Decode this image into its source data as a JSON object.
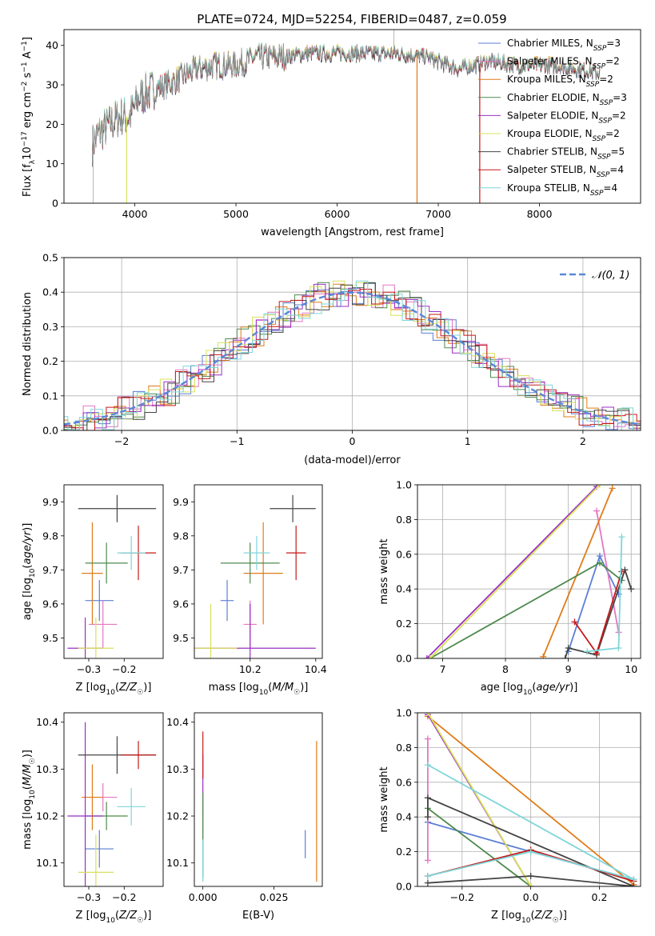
{
  "figure": {
    "title": "PLATE=0724, MJD=52254, FIBERID=0487, z=0.059"
  },
  "chart_data": [
    {
      "id": "spectrum",
      "type": "line",
      "title": "PLATE=0724, MJD=52254, FIBERID=0487, z=0.059",
      "xlabel": "wavelength [Angstrom, rest frame]",
      "ylabel": "Flux [f_λ 10^-17 erg cm^-2 s^-1 A^-1]",
      "xlim": [
        3300,
        9000
      ],
      "ylim": [
        0,
        44
      ],
      "xticks": [
        4000,
        5000,
        6000,
        7000,
        8000
      ],
      "yticks": [
        0,
        10,
        20,
        30,
        40
      ],
      "grid": false,
      "legend_position": "top-right",
      "continuum": {
        "x": [
          3580,
          3650,
          3750,
          3850,
          3950,
          4050,
          4200,
          4400,
          4600,
          4800,
          5000,
          5200,
          5400,
          5700,
          6000,
          6300,
          6600,
          6900,
          7200,
          7500,
          7800,
          8100,
          8400,
          8600
        ],
        "y": [
          15,
          18,
          20,
          22,
          22,
          27,
          29,
          31,
          34,
          35,
          35,
          37,
          37,
          38,
          38,
          38,
          38,
          37,
          34,
          36,
          35,
          35,
          34,
          33
        ]
      },
      "series": [
        {
          "name": "Chabrier MILES, N_SSP=3",
          "color": "#5b7fd6"
        },
        {
          "name": "Salpeter MILES, N_SSP=2",
          "color": "#e377c2"
        },
        {
          "name": "Kroupa MILES, N_SSP=2",
          "color": "#e07b18"
        },
        {
          "name": "Chabrier ELODIE, N_SSP=3",
          "color": "#4e8a4e"
        },
        {
          "name": "Salpeter ELODIE, N_SSP=2",
          "color": "#9b2fc2"
        },
        {
          "name": "Kroupa ELODIE, N_SSP=2",
          "color": "#d8e05a"
        },
        {
          "name": "Chabrier STELIB, N_SSP=5",
          "color": "#444444"
        },
        {
          "name": "Salpeter STELIB, N_SSP=4",
          "color": "#c41a1a"
        },
        {
          "name": "Kroupa STELIB, N_SSP=4",
          "color": "#7fd6d8"
        }
      ]
    },
    {
      "id": "residuals",
      "type": "histogram",
      "xlabel": "(data-model)/error",
      "ylabel": "Normed distribution",
      "xlim": [
        -2.5,
        2.5
      ],
      "ylim": [
        0,
        0.5
      ],
      "xticks": [
        -2,
        -1,
        0,
        1,
        2
      ],
      "yticks": [
        0.0,
        0.1,
        0.2,
        0.3,
        0.4,
        0.5
      ],
      "grid": true,
      "legend_position": "top-right",
      "reference_curve": {
        "name": "𝒩(0, 1)",
        "color": "#5b88d6"
      }
    },
    {
      "id": "Z-age",
      "type": "errorbar",
      "xlabel": "Z [log10(Z/Z☉)]",
      "ylabel": "age  [log10(age/yr)]",
      "xlim": [
        -0.37,
        -0.09
      ],
      "ylim": [
        9.44,
        9.95
      ],
      "xticks": [
        -0.3,
        -0.2
      ],
      "yticks": [
        9.5,
        9.6,
        9.7,
        9.8,
        9.9
      ],
      "points": [
        {
          "x": -0.27,
          "xerr": 0.04,
          "y": 9.61,
          "yerr": 0.06,
          "color": "#5b7fd6"
        },
        {
          "x": -0.26,
          "xerr": 0.04,
          "y": 9.54,
          "yerr": 0.07,
          "color": "#e377c2"
        },
        {
          "x": -0.29,
          "xerr": 0.03,
          "y": 9.69,
          "yerr": 0.15,
          "color": "#e07b18"
        },
        {
          "x": -0.25,
          "xerr": 0.06,
          "y": 9.72,
          "yerr": 0.06,
          "color": "#4e8a4e"
        },
        {
          "x": -0.31,
          "xerr": 0.05,
          "y": 9.47,
          "yerr": 0.09,
          "color": "#9b2fc2"
        },
        {
          "x": -0.28,
          "xerr": 0.05,
          "y": 9.47,
          "yerr": 0.09,
          "color": "#d8e05a"
        },
        {
          "x": -0.22,
          "xerr": 0.11,
          "y": 9.88,
          "yerr": 0.04,
          "color": "#444444"
        },
        {
          "x": -0.16,
          "xerr": 0.05,
          "y": 9.75,
          "yerr": 0.08,
          "color": "#c41a1a"
        },
        {
          "x": -0.18,
          "xerr": 0.04,
          "y": 9.75,
          "yerr": 0.05,
          "color": "#7fd6d8"
        }
      ]
    },
    {
      "id": "mass-age",
      "type": "errorbar",
      "xlabel": "mass [log10(M/M☉)]",
      "ylabel": "",
      "xlim": [
        10.03,
        10.42
      ],
      "ylim": [
        9.44,
        9.95
      ],
      "xticks": [
        10.2,
        10.4
      ],
      "yticks": [
        9.5,
        9.6,
        9.7,
        9.8,
        9.9
      ],
      "points": [
        {
          "x": 10.13,
          "xerr": 0.02,
          "y": 9.61,
          "yerr": 0.06,
          "color": "#5b7fd6"
        },
        {
          "x": 10.2,
          "xerr": 0.02,
          "y": 9.54,
          "yerr": 0.07,
          "color": "#e377c2"
        },
        {
          "x": 10.24,
          "xerr": 0.06,
          "y": 9.69,
          "yerr": 0.15,
          "color": "#e07b18"
        },
        {
          "x": 10.2,
          "xerr": 0.09,
          "y": 9.72,
          "yerr": 0.06,
          "color": "#4e8a4e"
        },
        {
          "x": 10.2,
          "xerr": 0.2,
          "y": 9.47,
          "yerr": 0.13,
          "color": "#9b2fc2"
        },
        {
          "x": 10.08,
          "xerr": 0.08,
          "y": 9.47,
          "yerr": 0.13,
          "color": "#d8e05a"
        },
        {
          "x": 10.33,
          "xerr": 0.07,
          "y": 9.88,
          "yerr": 0.04,
          "color": "#444444"
        },
        {
          "x": 10.34,
          "xerr": 0.03,
          "y": 9.75,
          "yerr": 0.08,
          "color": "#c41a1a"
        },
        {
          "x": 10.22,
          "xerr": 0.04,
          "y": 9.75,
          "yerr": 0.05,
          "color": "#7fd6d8"
        }
      ]
    },
    {
      "id": "age-weight",
      "type": "line",
      "xlabel": "age  [log10(age/yr)]",
      "ylabel": "mass weight",
      "xlim": [
        6.6,
        10.15
      ],
      "ylim": [
        0,
        1
      ],
      "xticks": [
        7,
        8,
        9,
        10
      ],
      "yticks": [
        0.0,
        0.2,
        0.4,
        0.6,
        0.8,
        1.0
      ],
      "grid": true,
      "series": [
        {
          "color": "#5b7fd6",
          "x": [
            9.0,
            9.5,
            9.8
          ],
          "y": [
            0.04,
            0.59,
            0.37
          ]
        },
        {
          "color": "#e377c2",
          "x": [
            9.45,
            9.8
          ],
          "y": [
            0.85,
            0.15
          ]
        },
        {
          "color": "#e07b18",
          "x": [
            8.6,
            9.7
          ],
          "y": [
            0.01,
            0.98
          ]
        },
        {
          "color": "#4e8a4e",
          "x": [
            6.8,
            9.5,
            9.85
          ],
          "y": [
            0.0,
            0.55,
            0.45
          ]
        },
        {
          "color": "#9b2fc2",
          "x": [
            6.75,
            9.45
          ],
          "y": [
            0.0,
            0.99
          ]
        },
        {
          "color": "#d8e05a",
          "x": [
            6.8,
            9.5
          ],
          "y": [
            0.0,
            1.0
          ]
        },
        {
          "color": "#444444",
          "x": [
            8.95,
            9.0,
            9.45,
            9.9,
            10.0
          ],
          "y": [
            0.0,
            0.06,
            0.02,
            0.51,
            0.4
          ]
        },
        {
          "color": "#c41a1a",
          "x": [
            9.1,
            9.45,
            9.85
          ],
          "y": [
            0.21,
            0.03,
            0.5
          ]
        },
        {
          "color": "#7fd6d8",
          "x": [
            9.3,
            9.8,
            9.85
          ],
          "y": [
            0.04,
            0.06,
            0.7
          ]
        }
      ]
    },
    {
      "id": "Z-mass",
      "type": "errorbar",
      "xlabel": "Z [log10(Z/Z☉)]",
      "ylabel": "mass [log10(M/M☉)]",
      "xlim": [
        -0.37,
        -0.09
      ],
      "ylim": [
        10.05,
        10.42
      ],
      "xticks": [
        -0.3,
        -0.2
      ],
      "yticks": [
        10.1,
        10.2,
        10.3,
        10.4
      ],
      "points": [
        {
          "x": -0.27,
          "xerr": 0.04,
          "y": 10.13,
          "yerr": 0.04,
          "color": "#5b7fd6"
        },
        {
          "x": -0.26,
          "xerr": 0.04,
          "y": 10.24,
          "yerr": 0.03,
          "color": "#e377c2"
        },
        {
          "x": -0.29,
          "xerr": 0.03,
          "y": 10.24,
          "yerr": 0.07,
          "color": "#e07b18"
        },
        {
          "x": -0.25,
          "xerr": 0.06,
          "y": 10.2,
          "yerr": 0.03,
          "color": "#4e8a4e"
        },
        {
          "x": -0.31,
          "xerr": 0.05,
          "y": 10.2,
          "yerr": 0.2,
          "color": "#9b2fc2"
        },
        {
          "x": -0.28,
          "xerr": 0.05,
          "y": 10.08,
          "yerr": 0.08,
          "color": "#d8e05a"
        },
        {
          "x": -0.22,
          "xerr": 0.11,
          "y": 10.33,
          "yerr": 0.04,
          "color": "#444444"
        },
        {
          "x": -0.16,
          "xerr": 0.05,
          "y": 10.33,
          "yerr": 0.03,
          "color": "#c41a1a"
        },
        {
          "x": -0.18,
          "xerr": 0.04,
          "y": 10.22,
          "yerr": 0.04,
          "color": "#7fd6d8"
        }
      ]
    },
    {
      "id": "ebv-mass",
      "type": "errorbar",
      "xlabel": "E(B-V)",
      "ylabel": "",
      "xlim": [
        -0.003,
        0.042
      ],
      "ylim": [
        10.05,
        10.42
      ],
      "xticks": [
        0.0,
        0.025
      ],
      "yticks": [
        10.1,
        10.2,
        10.3,
        10.4
      ],
      "points": [
        {
          "x": 0.0,
          "xerr": 0.0,
          "y": 10.2,
          "yerr": 0.13,
          "color": "#9b2fc2"
        },
        {
          "x": 0.0,
          "xerr": 0.0,
          "y": 10.33,
          "yerr": 0.05,
          "color": "#c41a1a"
        },
        {
          "x": 0.0,
          "xerr": 0.0,
          "y": 10.13,
          "yerr": 0.07,
          "color": "#7fd6d8"
        },
        {
          "x": 0.0,
          "xerr": 0.0,
          "y": 10.2,
          "yerr": 0.05,
          "color": "#4e8a4e"
        },
        {
          "x": 0.036,
          "xerr": 0.0,
          "y": 10.14,
          "yerr": 0.03,
          "color": "#5b7fd6"
        },
        {
          "x": 0.04,
          "xerr": 0.0,
          "y": 10.21,
          "yerr": 0.15,
          "color": "#e07b18"
        }
      ]
    },
    {
      "id": "Z-weight",
      "type": "line",
      "xlabel": "Z [log10(Z/Z☉)]",
      "ylabel": "mass weight",
      "xlim": [
        -0.33,
        0.32
      ],
      "ylim": [
        0,
        1
      ],
      "xticks": [
        -0.2,
        0.0,
        0.2
      ],
      "yticks": [
        0.0,
        0.2,
        0.4,
        0.6,
        0.8,
        1.0
      ],
      "grid": true,
      "series": [
        {
          "color": "#5b7fd6",
          "x": [
            -0.3,
            0.0,
            0.3
          ],
          "y": [
            0.37,
            0.2,
            0.04
          ]
        },
        {
          "color": "#e377c2",
          "x": [
            -0.3,
            -0.3
          ],
          "y": [
            0.85,
            0.15
          ]
        },
        {
          "color": "#e07b18",
          "x": [
            -0.3,
            0.3
          ],
          "y": [
            0.98,
            0.01
          ]
        },
        {
          "color": "#4e8a4e",
          "x": [
            -0.3,
            0.0
          ],
          "y": [
            0.45,
            0.0
          ]
        },
        {
          "color": "#9b2fc2",
          "x": [
            -0.3,
            0.0
          ],
          "y": [
            0.99,
            0.0
          ]
        },
        {
          "color": "#d8e05a",
          "x": [
            -0.3,
            0.0
          ],
          "y": [
            1.0,
            0.0
          ]
        },
        {
          "color": "#444444",
          "x": [
            -0.3,
            0.0,
            0.3,
            -0.3,
            -0.3
          ],
          "y": [
            0.02,
            0.06,
            0.0,
            0.51,
            0.4
          ]
        },
        {
          "color": "#c41a1a",
          "x": [
            -0.3,
            0.0,
            0.3
          ],
          "y": [
            0.06,
            0.21,
            0.03
          ]
        },
        {
          "color": "#7fd6d8",
          "x": [
            -0.3,
            0.0,
            0.3,
            -0.3
          ],
          "y": [
            0.06,
            0.2,
            0.04,
            0.7
          ]
        }
      ]
    }
  ]
}
